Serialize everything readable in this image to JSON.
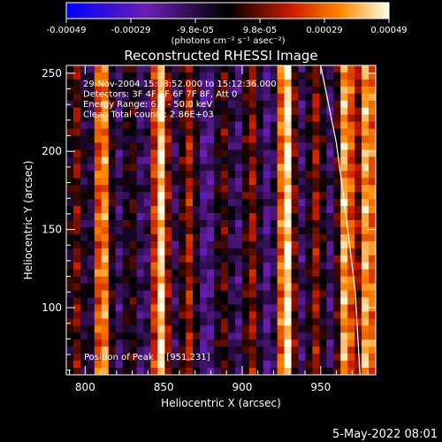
{
  "chart_data": {
    "type": "heatmap",
    "title": "Reconstructed RHESSI Image",
    "xlabel": "Heliocentric X (arcsec)",
    "ylabel": "Heliocentric Y (arcsec)",
    "xlim": [
      788,
      985
    ],
    "ylim": [
      57,
      255
    ],
    "xticks": [
      800,
      850,
      900,
      950
    ],
    "yticks": [
      100,
      150,
      200,
      250
    ],
    "colorbar": {
      "ticks": [
        "-0.00049",
        "-0.00029",
        "-9.8e-05",
        "9.8e-05",
        "0.00029",
        "0.00049"
      ],
      "range": [
        -0.00049,
        0.00049
      ],
      "units_label": "(photons cm⁻² s⁻¹ asec⁻²)"
    },
    "annotations": [
      "29-Nov-2004 15:08:52.000 to 15:12:36.000",
      "Detectors: 3F 4F 5F 6F 7F 8F, Att 0",
      "Energy Range: 6.0 - 50.0 keV",
      "Clean     Total counts: 2.86E+03"
    ],
    "peak_label": "Position of Peak = [951,231]",
    "limb_curve": [
      [
        950,
        255
      ],
      [
        960,
        205
      ],
      [
        966,
        160
      ],
      [
        972,
        110
      ],
      [
        975,
        57
      ]
    ],
    "stripe_centers_x": [
      794,
      811,
      829,
      848,
      866,
      888,
      906,
      928,
      947,
      966,
      980
    ],
    "stripe_strengths": [
      0.45,
      0.85,
      0.35,
      0.95,
      0.55,
      0.4,
      0.5,
      1.0,
      0.5,
      0.88,
      0.9
    ]
  },
  "footer": {
    "date": "5-May-2022 08:01"
  }
}
